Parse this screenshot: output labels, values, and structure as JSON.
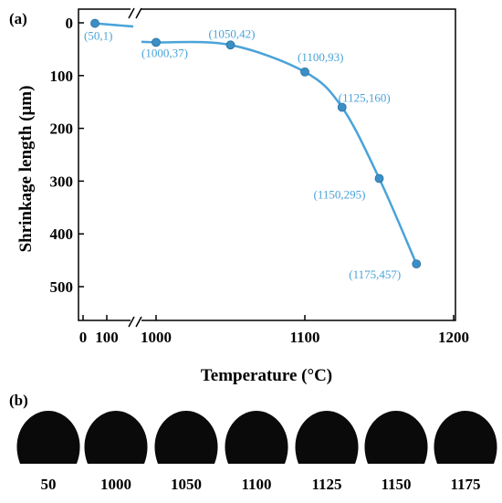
{
  "panel_a_label": "(a)",
  "panel_b_label": "(b)",
  "chart_data": {
    "type": "line",
    "xlabel": "Temperature (°C)",
    "ylabel": "Shrinkage length (μm)",
    "x_axis_break": true,
    "y_inverted": true,
    "x_ticks": [
      "0",
      "100",
      "1000",
      "1100",
      "1200"
    ],
    "y_ticks": [
      "0",
      "100",
      "200",
      "300",
      "400",
      "500"
    ],
    "ylim": [
      0,
      550
    ],
    "x_main_range": [
      975,
      1200
    ],
    "series_color": "#4aa3d8",
    "points": [
      {
        "x": 50,
        "y": 1,
        "label": "(50,1)"
      },
      {
        "x": 1000,
        "y": 37,
        "label": "(1000,37)"
      },
      {
        "x": 1050,
        "y": 42,
        "label": "(1050,42)"
      },
      {
        "x": 1100,
        "y": 93,
        "label": "(1100,93)"
      },
      {
        "x": 1125,
        "y": 160,
        "label": "(1125,160)"
      },
      {
        "x": 1150,
        "y": 295,
        "label": "(1150,295)"
      },
      {
        "x": 1175,
        "y": 457,
        "label": "(1175,457)"
      }
    ]
  },
  "droplets": {
    "temperatures": [
      "50",
      "1000",
      "1050",
      "1100",
      "1125",
      "1150",
      "1175"
    ]
  }
}
